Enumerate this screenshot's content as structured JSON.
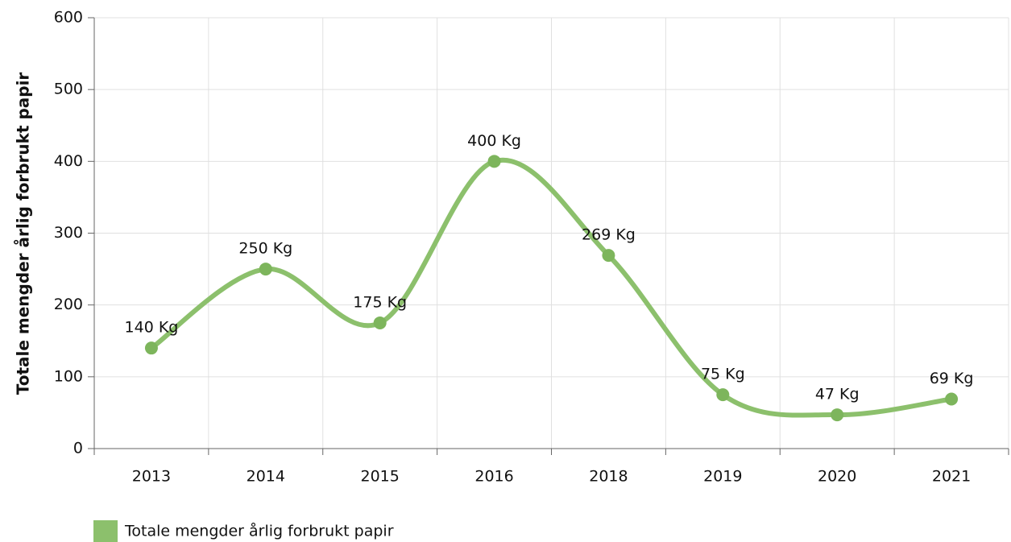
{
  "chart_data": {
    "type": "line",
    "y_label": "Totale mengder årlig forbrukt papir",
    "categories": [
      "2013",
      "2014",
      "2015",
      "2016",
      "2018",
      "2019",
      "2020",
      "2021"
    ],
    "series": [
      {
        "name": "Totale mengder årlig forbrukt papir",
        "color": "#8cc06c",
        "values": [
          140,
          250,
          175,
          400,
          269,
          75,
          47,
          69
        ],
        "value_labels": [
          "140 Kg",
          "250 Kg",
          "175 Kg",
          "400 Kg",
          "269 Kg",
          "75 Kg",
          "47 Kg",
          "69 Kg"
        ]
      }
    ],
    "ylim": [
      0,
      600
    ],
    "yticks": [
      0,
      100,
      200,
      300,
      400,
      500,
      600
    ],
    "grid": true,
    "smooth": true,
    "legend": "bottom-left"
  }
}
